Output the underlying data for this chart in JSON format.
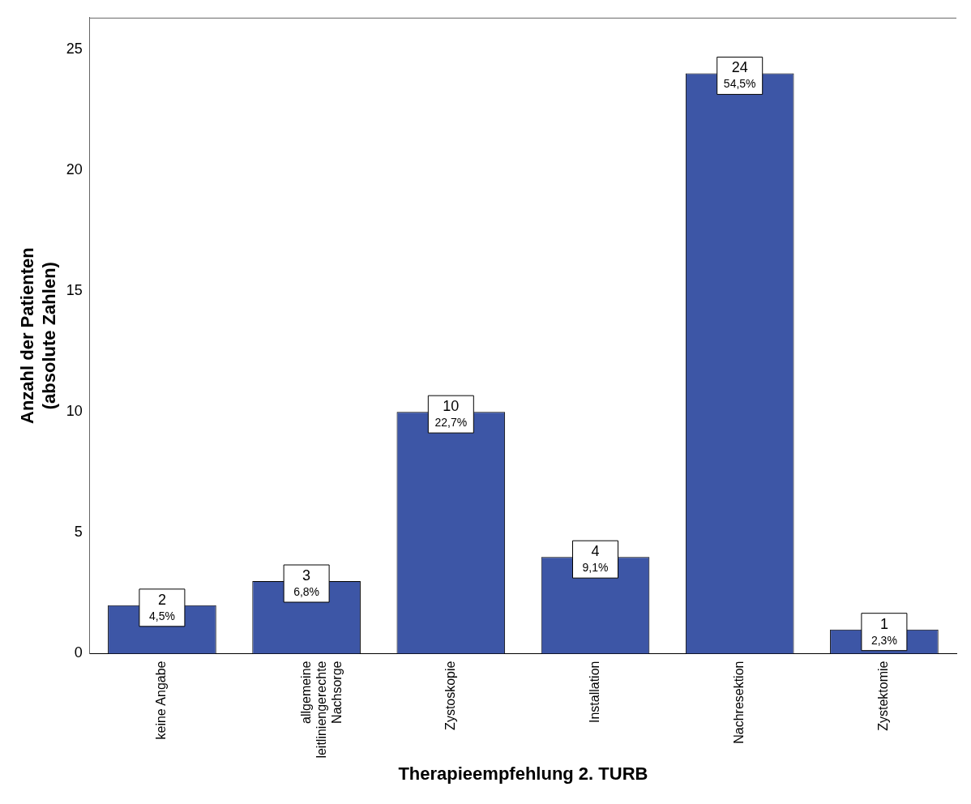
{
  "chart_data": {
    "type": "bar",
    "xlabel": "Therapieempfehlung 2. TURB",
    "ylabel": "Anzahl der Patienten (absolute Zahlen)",
    "categories": [
      "keine Angabe",
      "allgemeine leitliniengerechte Nachsorge",
      "Zystoskopie",
      "Installation",
      "Nachresektion",
      "Zystektomie"
    ],
    "values": [
      2,
      3,
      10,
      4,
      24,
      1
    ],
    "value_labels": [
      "2\n4,5%",
      "3\n6,8%",
      "10\n22,7%",
      "4\n9,1%",
      "24\n54,5%",
      "1\n2,3%"
    ],
    "color": "#3d56a6",
    "ylim": [
      0,
      26.3
    ],
    "yticks": [
      0,
      5,
      10,
      15,
      20,
      25
    ],
    "grid": false,
    "legend": false
  }
}
